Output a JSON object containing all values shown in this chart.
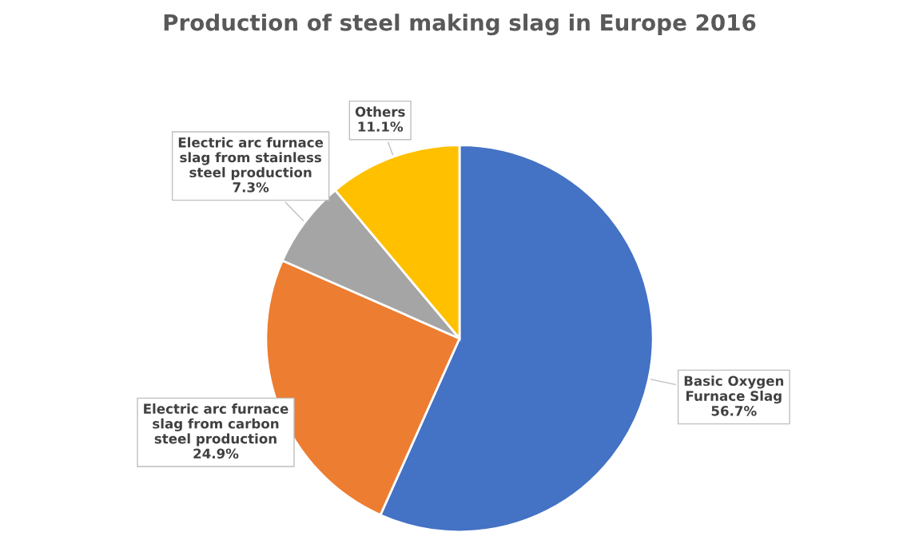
{
  "chart_data": {
    "type": "pie",
    "title": "Production of steel making slag in Europe 2016",
    "categories": [
      "Basic Oxygen\nFurnace Slag",
      "Electric arc furnace\nslag from carbon\nsteel production",
      "Electric arc furnace\nslag from stainless\nsteel production",
      "Others"
    ],
    "values": [
      56.7,
      24.9,
      7.3,
      11.1
    ],
    "value_labels": [
      "56.7%",
      "24.9%",
      "7.3%",
      "11.1%"
    ],
    "colors": [
      "#4472c4",
      "#ed7d31",
      "#a5a5a5",
      "#ffc000"
    ],
    "legend": false
  }
}
